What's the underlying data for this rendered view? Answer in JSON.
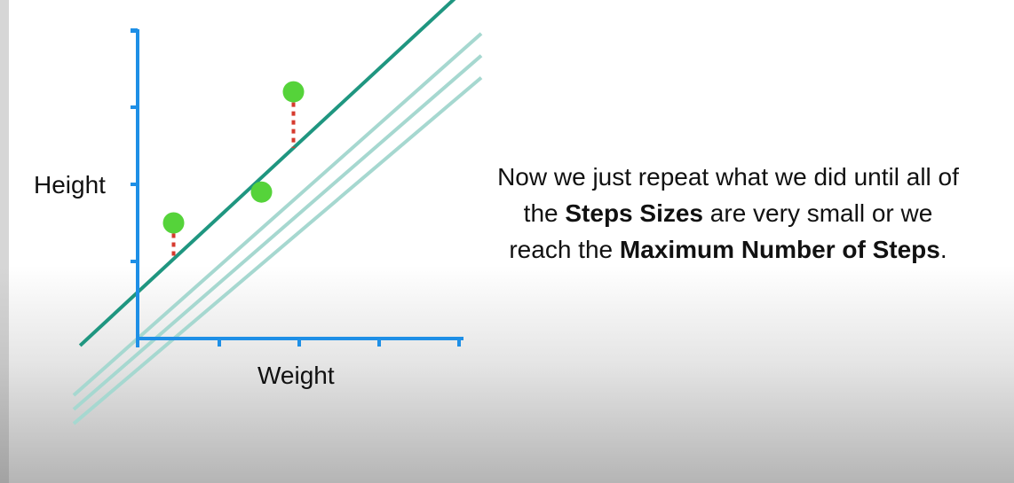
{
  "diagram": {
    "y_axis_label": "Height",
    "x_axis_label": "Weight",
    "points": [
      {
        "weight": 0.45,
        "height": 1.5
      },
      {
        "weight": 1.55,
        "height": 1.9
      },
      {
        "weight": 1.95,
        "height": 3.2
      }
    ],
    "fitted_line": {
      "intercept": 0.6,
      "slope": 0.96
    },
    "previous_lines": [
      {
        "intercept": 0.0,
        "slope": 0.92
      },
      {
        "intercept": -0.2,
        "slope": 0.9
      },
      {
        "intercept": -0.4,
        "slope": 0.88
      }
    ],
    "x_ticks": [
      0,
      1,
      2,
      3,
      4
    ],
    "y_ticks": [
      1,
      2,
      3,
      4
    ],
    "colors": {
      "axis": "#1e8fe6",
      "fitted_line": "#1f9680",
      "previous_line": "#a6d8d0",
      "point": "#55d33a",
      "residual": "#d63a2e"
    }
  },
  "caption": {
    "part1": "Now we just repeat what we did until all of the ",
    "bold1": "Steps Sizes",
    "part2": " are very small or we reach the ",
    "bold2": "Maximum Number of Steps",
    "part3": "."
  }
}
